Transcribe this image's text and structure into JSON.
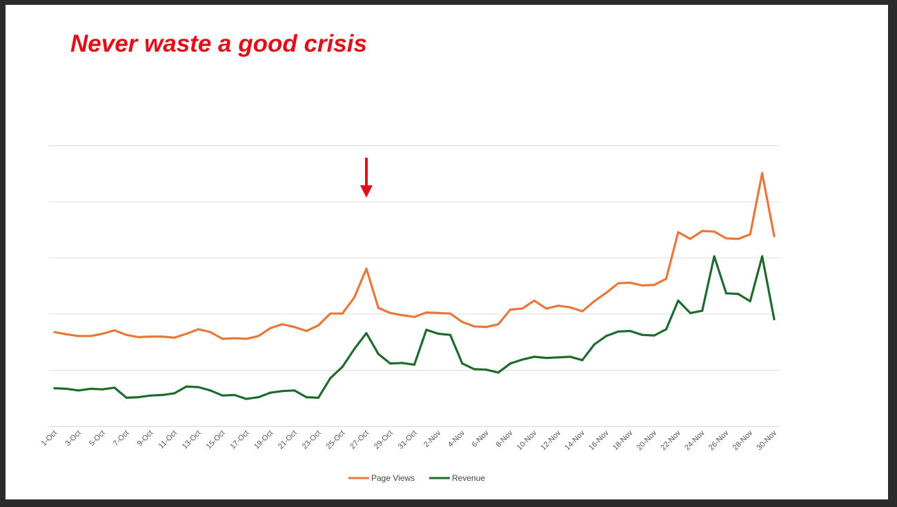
{
  "chart_data": {
    "type": "line",
    "title": "Never waste a good crisis",
    "x": [
      "1-Oct",
      "2-Oct",
      "3-Oct",
      "4-Oct",
      "5-Oct",
      "6-Oct",
      "7-Oct",
      "8-Oct",
      "9-Oct",
      "10-Oct",
      "11-Oct",
      "12-Oct",
      "13-Oct",
      "14-Oct",
      "15-Oct",
      "16-Oct",
      "17-Oct",
      "18-Oct",
      "19-Oct",
      "20-Oct",
      "21-Oct",
      "22-Oct",
      "23-Oct",
      "24-Oct",
      "25-Oct",
      "26-Oct",
      "27-Oct",
      "28-Oct",
      "29-Oct",
      "30-Oct",
      "31-Oct",
      "1-Nov",
      "2-Nov",
      "3-Nov",
      "4-Nov",
      "5-Nov",
      "6-Nov",
      "7-Nov",
      "8-Nov",
      "9-Nov",
      "10-Nov",
      "11-Nov",
      "12-Nov",
      "13-Nov",
      "14-Nov",
      "15-Nov",
      "16-Nov",
      "17-Nov",
      "18-Nov",
      "19-Nov",
      "20-Nov",
      "21-Nov",
      "22-Nov",
      "23-Nov",
      "24-Nov",
      "25-Nov",
      "26-Nov",
      "27-Nov",
      "28-Nov",
      "29-Nov",
      "30-Nov"
    ],
    "tick_labels": [
      "1-Oct",
      "3-Oct",
      "5-Oct",
      "7-Oct",
      "9-Oct",
      "11-Oct",
      "13-Oct",
      "15-Oct",
      "17-Oct",
      "19-Oct",
      "21-Oct",
      "23-Oct",
      "25-Oct",
      "27-Oct",
      "29-Oct",
      "31-Oct",
      "2-Nov",
      "4-Nov",
      "6-Nov",
      "8-Nov",
      "10-Nov",
      "12-Nov",
      "14-Nov",
      "16-Nov",
      "18-Nov",
      "20-Nov",
      "22-Nov",
      "24-Nov",
      "26-Nov",
      "28-Nov",
      "30-Nov"
    ],
    "series": [
      {
        "name": "Page Views",
        "color": "#e8783a",
        "values": [
          1.68,
          1.64,
          1.61,
          1.61,
          1.65,
          1.71,
          1.63,
          1.59,
          1.6,
          1.6,
          1.58,
          1.65,
          1.73,
          1.68,
          1.56,
          1.57,
          1.56,
          1.61,
          1.75,
          1.82,
          1.77,
          1.7,
          1.8,
          2.01,
          2.01,
          2.3,
          2.81,
          2.11,
          2.02,
          1.98,
          1.95,
          2.03,
          2.02,
          2.01,
          1.86,
          1.78,
          1.77,
          1.82,
          2.08,
          2.1,
          2.24,
          2.1,
          2.15,
          2.12,
          2.05,
          2.23,
          2.38,
          2.55,
          2.56,
          2.51,
          2.52,
          2.63,
          3.46,
          3.34,
          3.48,
          3.47,
          3.35,
          3.34,
          3.42,
          4.51,
          3.39
        ]
      },
      {
        "name": "Revenue",
        "color": "#1e6b2e",
        "values": [
          0.68,
          0.67,
          0.64,
          0.67,
          0.66,
          0.69,
          0.51,
          0.52,
          0.55,
          0.56,
          0.59,
          0.71,
          0.7,
          0.64,
          0.55,
          0.56,
          0.49,
          0.52,
          0.6,
          0.63,
          0.64,
          0.52,
          0.51,
          0.86,
          1.06,
          1.38,
          1.66,
          1.29,
          1.12,
          1.13,
          1.1,
          1.72,
          1.65,
          1.63,
          1.12,
          1.02,
          1.01,
          0.96,
          1.12,
          1.19,
          1.24,
          1.22,
          1.23,
          1.24,
          1.18,
          1.46,
          1.61,
          1.69,
          1.7,
          1.63,
          1.62,
          1.73,
          2.24,
          2.02,
          2.06,
          3.03,
          2.37,
          2.36,
          2.23,
          3.03,
          1.91
        ]
      }
    ],
    "ylim": [
      0,
      5
    ],
    "grid": true,
    "legend_position": "bottom-center",
    "annotations": [
      {
        "type": "arrow",
        "x": "27-Oct",
        "color": "#e0101a"
      }
    ]
  }
}
